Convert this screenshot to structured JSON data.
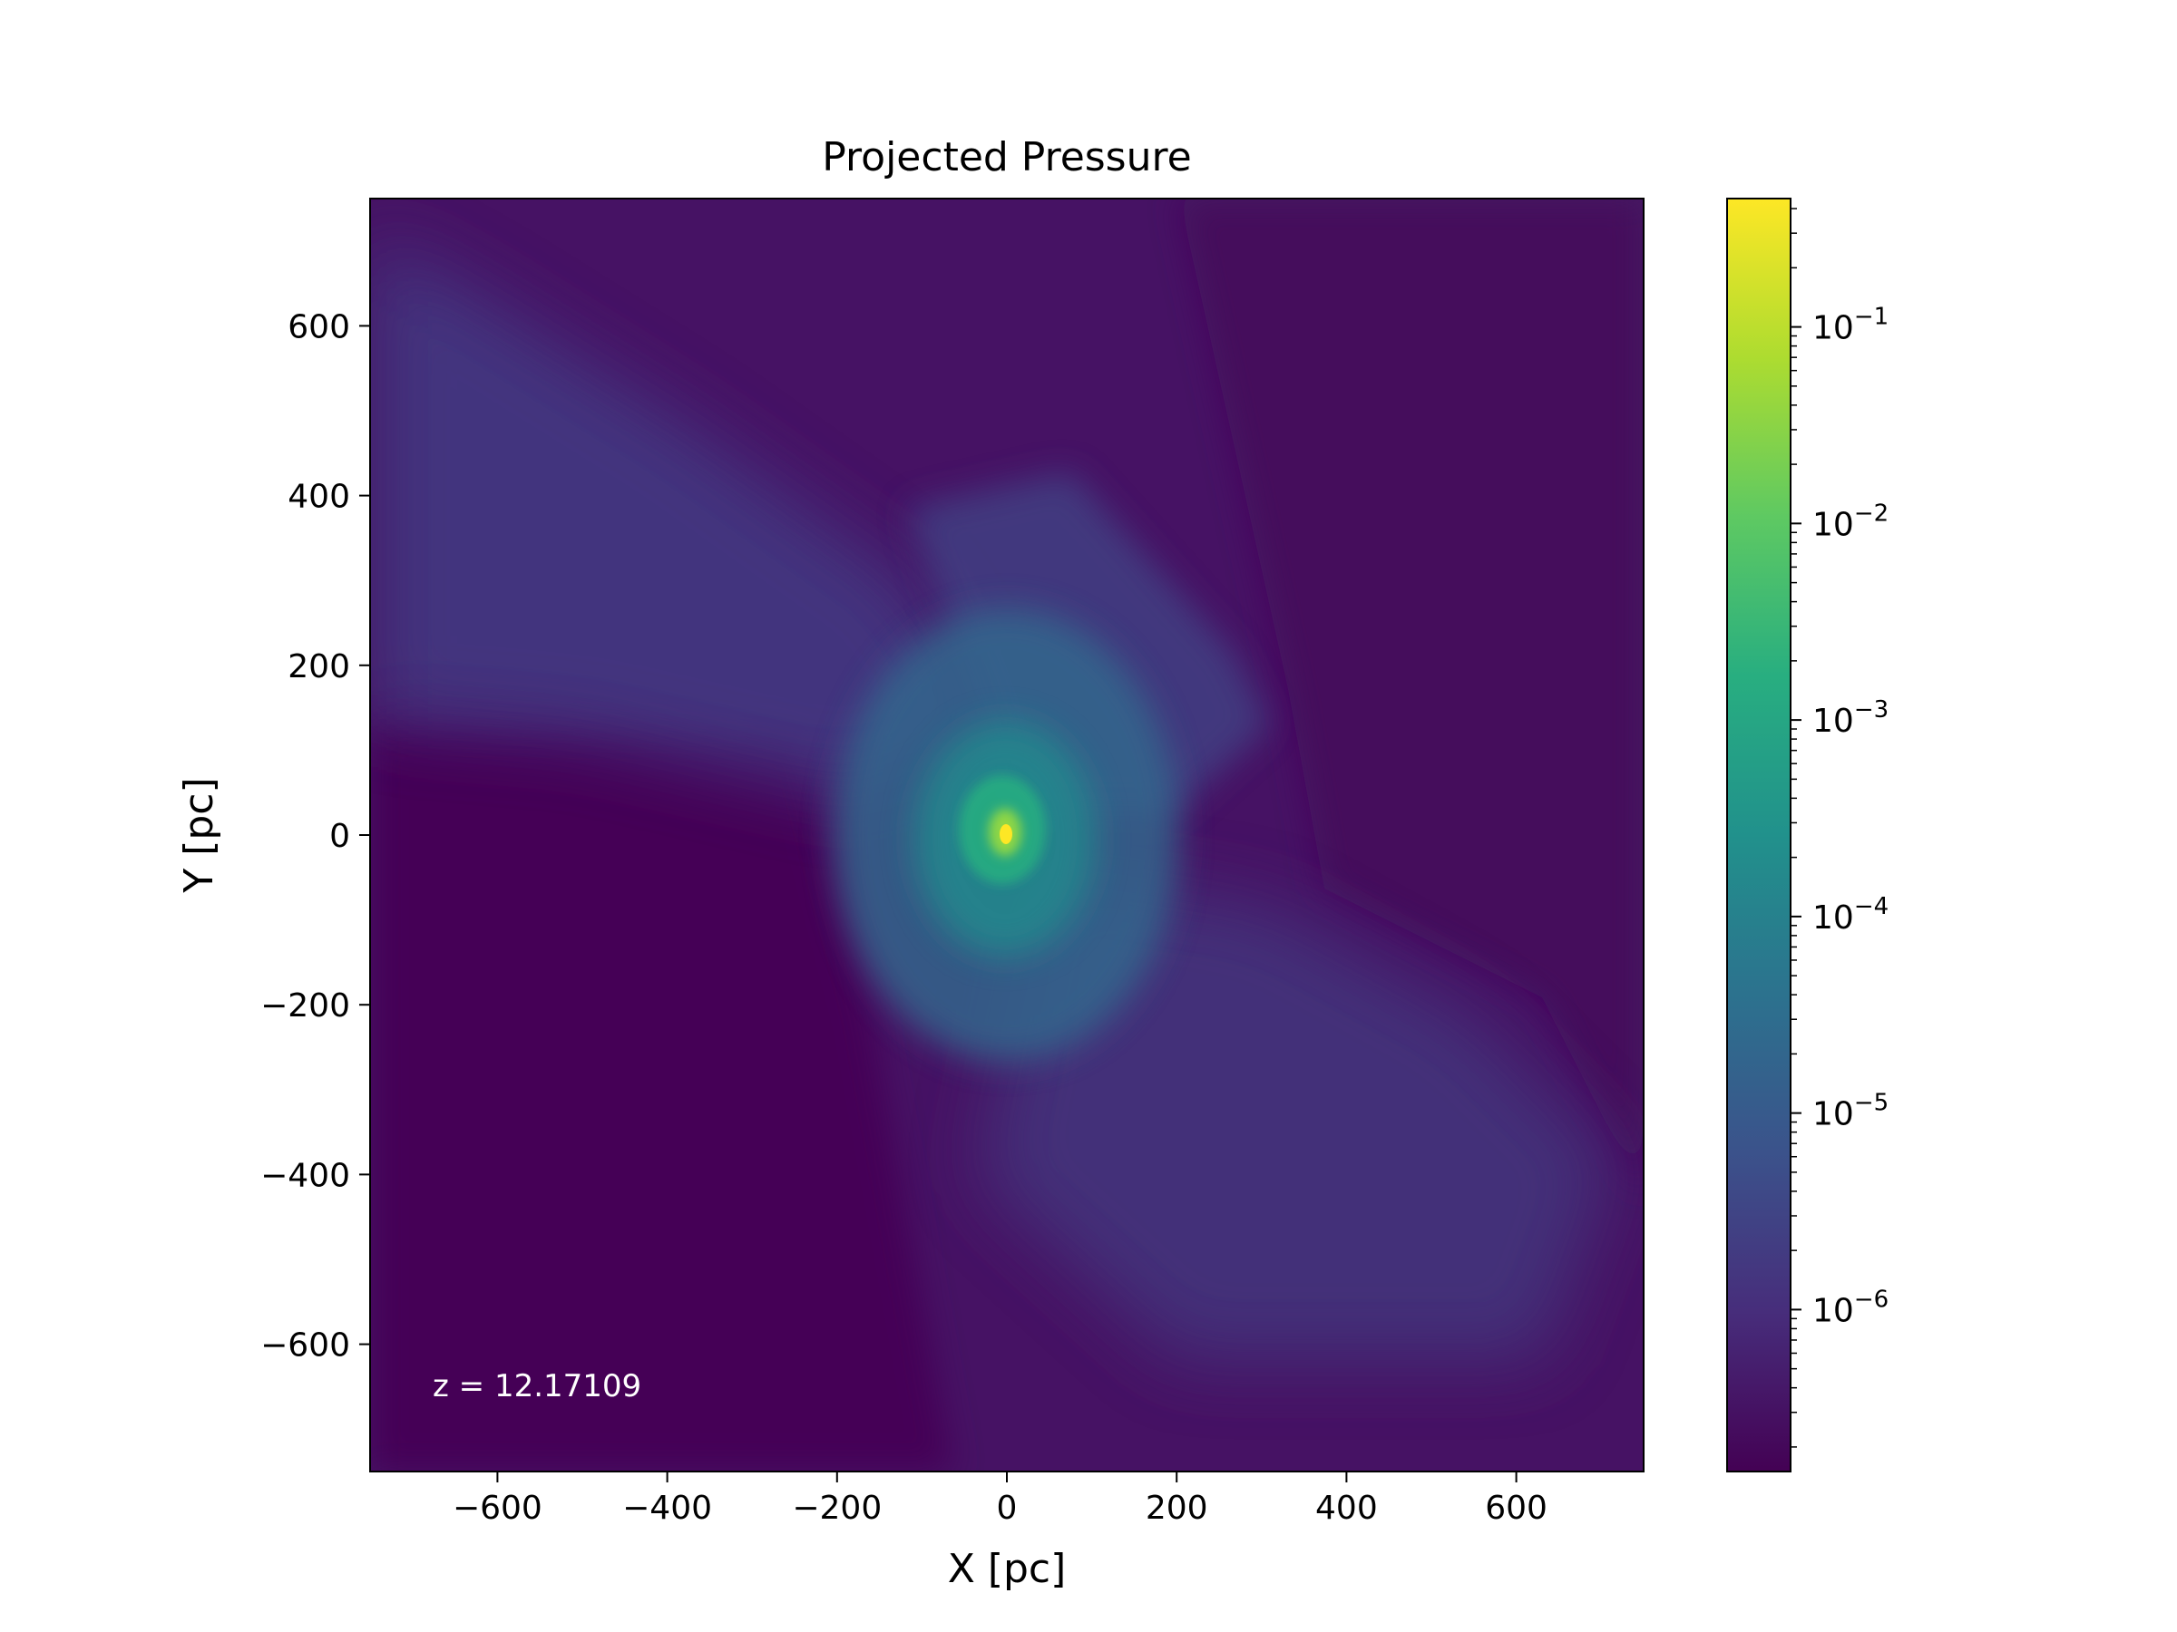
{
  "chart_data": {
    "type": "heatmap",
    "title": "Projected Pressure",
    "xlabel": "X [pc]",
    "ylabel": "Y [pc]",
    "xlim": [
      -750,
      750
    ],
    "ylim": [
      -750,
      750
    ],
    "x_ticks": [
      -600,
      -400,
      -200,
      0,
      200,
      400,
      600
    ],
    "x_tick_labels": [
      "−600",
      "−400",
      "−200",
      "0",
      "200",
      "400",
      "600"
    ],
    "y_ticks": [
      -600,
      -400,
      -200,
      0,
      200,
      400,
      600
    ],
    "y_tick_labels": [
      "−600",
      "−400",
      "−200",
      "0",
      "200",
      "400",
      "600"
    ],
    "annotation": "z = 12.17109",
    "grid": false,
    "colormap": "viridis",
    "colorbar": {
      "scale": "log",
      "range": [
        1.5e-07,
        0.45
      ],
      "ticks": [
        1e-06,
        1e-05,
        0.0001,
        0.001,
        0.01,
        0.1
      ],
      "tick_labels": [
        {
          "base": "10",
          "exp": "−6"
        },
        {
          "base": "10",
          "exp": "−5"
        },
        {
          "base": "10",
          "exp": "−4"
        },
        {
          "base": "10",
          "exp": "−3"
        },
        {
          "base": "10",
          "exp": "−2"
        },
        {
          "base": "10",
          "exp": "−1"
        }
      ]
    }
  }
}
